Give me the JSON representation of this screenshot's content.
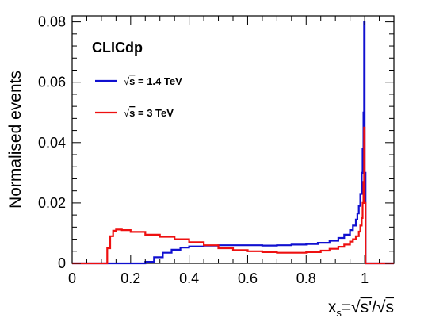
{
  "chart_data": {
    "type": "line",
    "brand_label": "CLICdp",
    "xlabel": "x_s = √s' / √s",
    "xlabel_parts": {
      "x": "x",
      "sub": "s",
      "eq": "=",
      "num": "s'",
      "slash": "/",
      "den": "s"
    },
    "ylabel": "Normalised events",
    "xlim": [
      0,
      1.1
    ],
    "ylim": [
      0,
      0.082
    ],
    "x_ticks": [
      0,
      0.2,
      0.4,
      0.6,
      0.8,
      1
    ],
    "x_tick_labels": [
      "0",
      "0.2",
      "0.4",
      "0.6",
      "0.8",
      "1"
    ],
    "y_ticks": [
      0,
      0.02,
      0.04,
      0.06,
      0.08
    ],
    "y_tick_labels": [
      "0",
      "0.02",
      "0.04",
      "0.06",
      "0.08"
    ],
    "grid": false,
    "legend_position": "top-left",
    "series": [
      {
        "name": "√s = 1.4 TeV",
        "legend_parts": {
          "root": "s",
          "rest": " = 1.4 TeV"
        },
        "color": "#1010d0",
        "x": [
          0,
          0.22,
          0.25,
          0.28,
          0.31,
          0.34,
          0.37,
          0.4,
          0.45,
          0.5,
          0.55,
          0.6,
          0.65,
          0.7,
          0.75,
          0.8,
          0.84,
          0.88,
          0.91,
          0.93,
          0.95,
          0.96,
          0.97,
          0.975,
          0.98,
          0.985,
          0.99,
          0.993,
          0.996,
          0.998,
          1.0,
          1.003,
          1.1
        ],
        "y": [
          0,
          0,
          0.0005,
          0.002,
          0.0035,
          0.0045,
          0.0052,
          0.0056,
          0.0059,
          0.006,
          0.006,
          0.006,
          0.0059,
          0.006,
          0.0062,
          0.0064,
          0.0068,
          0.0075,
          0.0084,
          0.0095,
          0.011,
          0.0125,
          0.0145,
          0.0165,
          0.019,
          0.023,
          0.03,
          0.038,
          0.05,
          0.08,
          0.03,
          0,
          0
        ]
      },
      {
        "name": "√s = 3 TeV",
        "legend_parts": {
          "root": "s",
          "rest": " = 3 TeV"
        },
        "color": "#ee1010",
        "x": [
          0,
          0.11,
          0.12,
          0.13,
          0.14,
          0.15,
          0.17,
          0.2,
          0.25,
          0.3,
          0.35,
          0.4,
          0.45,
          0.5,
          0.55,
          0.6,
          0.65,
          0.7,
          0.75,
          0.8,
          0.85,
          0.88,
          0.91,
          0.93,
          0.95,
          0.96,
          0.97,
          0.98,
          0.985,
          0.99,
          0.993,
          0.996,
          0.998,
          1.0,
          1.003,
          1.1
        ],
        "y": [
          0,
          0,
          0.005,
          0.009,
          0.0108,
          0.0112,
          0.011,
          0.0104,
          0.0095,
          0.0088,
          0.008,
          0.007,
          0.006,
          0.005,
          0.0044,
          0.004,
          0.0037,
          0.0035,
          0.0035,
          0.0037,
          0.0042,
          0.0048,
          0.0055,
          0.0062,
          0.0072,
          0.008,
          0.009,
          0.0105,
          0.0125,
          0.015,
          0.02,
          0.027,
          0.045,
          0.02,
          0,
          0
        ]
      }
    ]
  }
}
